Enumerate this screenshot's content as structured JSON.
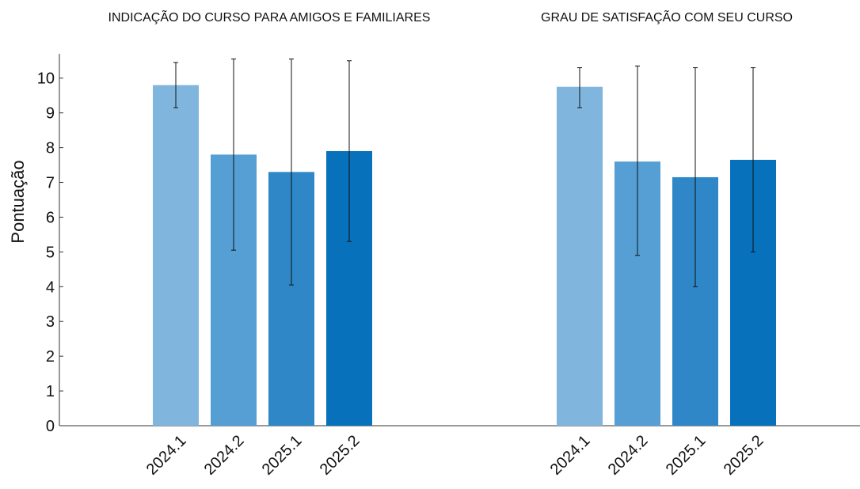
{
  "chart_data": {
    "type": "bar",
    "ylabel": "Pontuação",
    "ylim": [
      0,
      10.7
    ],
    "yticks": [
      "0",
      "1",
      "2",
      "3",
      "4",
      "5",
      "6",
      "7",
      "8",
      "9",
      "10"
    ],
    "categories": [
      "2024.1",
      "2024.2",
      "2025.1",
      "2025.2"
    ],
    "colors": [
      "#80b6de",
      "#559fd4",
      "#2f87c8",
      "#0771bc"
    ],
    "panels": [
      {
        "title": "INDICAÇÃO DO CURSO PARA AMIGOS E FAMILIARES",
        "values": [
          9.8,
          7.8,
          7.3,
          7.9
        ],
        "error_low": [
          9.15,
          5.05,
          4.05,
          5.3
        ],
        "error_high": [
          10.45,
          10.55,
          10.55,
          10.5
        ]
      },
      {
        "title": "GRAU DE SATISFAÇÃO COM SEU CURSO",
        "values": [
          9.75,
          7.6,
          7.15,
          7.65
        ],
        "error_low": [
          9.15,
          4.9,
          4.0,
          5.0
        ],
        "error_high": [
          10.3,
          10.35,
          10.3,
          10.3
        ]
      }
    ]
  }
}
